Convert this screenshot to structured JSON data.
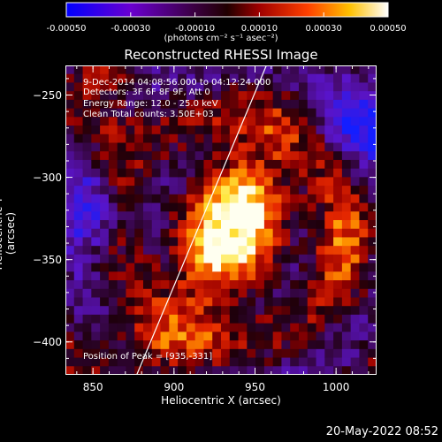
{
  "chart_data": {
    "type": "heatmap",
    "title": "Reconstructed RHESSI Image",
    "xlabel": "Heliocentric X (arcsec)",
    "ylabel": "Heliocentric Y (arcsec)",
    "xlim": [
      833,
      1025
    ],
    "ylim": [
      -420,
      -232
    ],
    "x_ticks": [
      850,
      900,
      950,
      1000
    ],
    "y_ticks": [
      -250,
      -300,
      -350,
      -400
    ],
    "colorbar": {
      "label": "(photons cm⁻² s⁻¹ asec⁻²)",
      "range": [
        -0.0005,
        0.0005
      ],
      "ticks": [
        "-0.00050",
        "-0.00030",
        "-0.00010",
        "0.00010",
        "0.00030",
        "0.00050"
      ],
      "colors": [
        "#0000ff",
        "#7a00c0",
        "#1a0010",
        "#c00000",
        "#ff8000",
        "#ffff80",
        "#ffffff"
      ]
    },
    "annotations": {
      "time_range": " 9-Dec-2014 04:08:56.000 to 04:12:24.000",
      "detectors": "Detectors: 3F 6F 8F 9F, Att 0",
      "energy_range": "Energy Range: 12.0 - 25.0 keV",
      "method": "Clean    Total counts: 3.50E+03",
      "peak": "Position of Peak = [935,-331]"
    },
    "peak": [
      935,
      -331
    ],
    "limb_line": [
      [
        877,
        -420
      ],
      [
        957,
        -232
      ]
    ]
  },
  "timestamp": "20-May-2022 08:52"
}
